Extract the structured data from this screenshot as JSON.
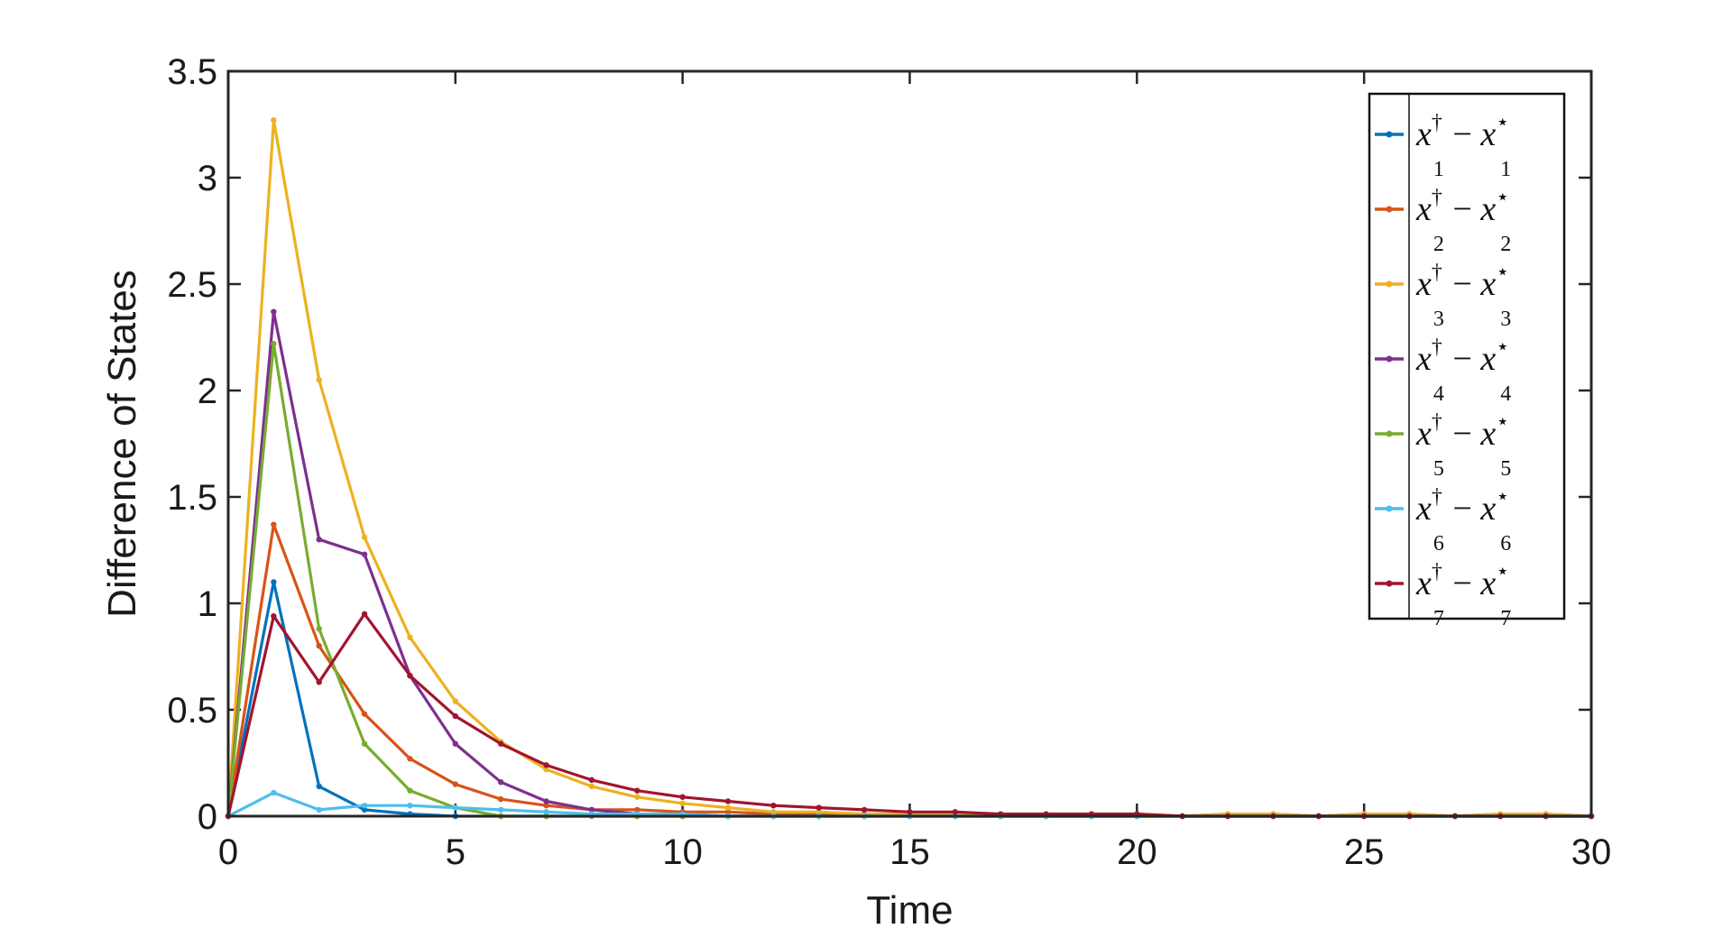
{
  "chart_data": {
    "type": "line",
    "xlabel": "Time",
    "ylabel": "Difference of States",
    "xlim": [
      0,
      30
    ],
    "ylim": [
      0,
      3.5
    ],
    "xticks": [
      0,
      5,
      10,
      15,
      20,
      25,
      30
    ],
    "yticks": [
      0,
      0.5,
      1,
      1.5,
      2,
      2.5,
      3,
      3.5
    ],
    "xtick_labels": [
      "0",
      "5",
      "10",
      "15",
      "20",
      "25",
      "30"
    ],
    "ytick_labels": [
      "0",
      "0.5",
      "1",
      "1.5",
      "2",
      "2.5",
      "3",
      "3.5"
    ],
    "grid": false,
    "legend_position": "top-right",
    "x": [
      0,
      1,
      2,
      3,
      4,
      5,
      6,
      7,
      8,
      9,
      10,
      11,
      12,
      13,
      14,
      15,
      16,
      17,
      18,
      19,
      20,
      21,
      22,
      23,
      24,
      25,
      26,
      27,
      28,
      29,
      30
    ],
    "series": [
      {
        "name": "x1† − x1⋆",
        "sub": "1",
        "color": "#0072BD",
        "values": [
          0,
          1.1,
          0.14,
          0.03,
          0.01,
          0,
          0,
          0,
          0,
          0,
          0,
          0,
          0,
          0,
          0,
          0,
          0,
          0,
          0,
          0,
          0,
          0,
          0,
          0,
          0,
          0,
          0,
          0,
          0,
          0,
          0
        ]
      },
      {
        "name": "x2† − x2⋆",
        "sub": "2",
        "color": "#D95319",
        "values": [
          0,
          1.37,
          0.8,
          0.48,
          0.27,
          0.15,
          0.08,
          0.05,
          0.03,
          0.03,
          0.02,
          0.02,
          0.01,
          0.01,
          0.01,
          0.01,
          0.01,
          0.01,
          0,
          0.01,
          0.01,
          0,
          0.01,
          0.01,
          0,
          0.01,
          0.01,
          0,
          0.01,
          0.01,
          0
        ]
      },
      {
        "name": "x3† − x3⋆",
        "sub": "3",
        "color": "#EDB120",
        "values": [
          0,
          3.27,
          2.05,
          1.31,
          0.84,
          0.54,
          0.35,
          0.22,
          0.14,
          0.09,
          0.06,
          0.04,
          0.02,
          0.02,
          0.01,
          0.01,
          0.01,
          0.01,
          0,
          0.01,
          0.01,
          0,
          0.01,
          0.01,
          0,
          0.01,
          0.01,
          0,
          0.01,
          0.01,
          0
        ]
      },
      {
        "name": "x4† − x4⋆",
        "sub": "4",
        "color": "#7E2F8E",
        "values": [
          0,
          2.37,
          1.3,
          1.23,
          0.66,
          0.34,
          0.16,
          0.07,
          0.03,
          0.01,
          0.01,
          0,
          0,
          0,
          0,
          0,
          0,
          0,
          0,
          0,
          0,
          0,
          0,
          0,
          0,
          0,
          0,
          0,
          0,
          0,
          0
        ]
      },
      {
        "name": "x5† − x5⋆",
        "sub": "5",
        "color": "#77AC30",
        "values": [
          0,
          2.22,
          0.88,
          0.34,
          0.12,
          0.04,
          0,
          0,
          0,
          0,
          0,
          0,
          0,
          0,
          0,
          0,
          0,
          0,
          0,
          0,
          0,
          0,
          0,
          0,
          0,
          0,
          0,
          0,
          0,
          0,
          0
        ]
      },
      {
        "name": "x6† − x6⋆",
        "sub": "6",
        "color": "#4DBEEE",
        "values": [
          0,
          0.11,
          0.03,
          0.05,
          0.05,
          0.04,
          0.03,
          0.02,
          0.01,
          0.01,
          0.01,
          0,
          0,
          0,
          0,
          0,
          0,
          0,
          0,
          0,
          0,
          0,
          0,
          0,
          0,
          0,
          0,
          0,
          0,
          0,
          0
        ]
      },
      {
        "name": "x7† − x7⋆",
        "sub": "7",
        "color": "#A2142F",
        "values": [
          0,
          0.94,
          0.63,
          0.95,
          0.66,
          0.47,
          0.34,
          0.24,
          0.17,
          0.12,
          0.09,
          0.07,
          0.05,
          0.04,
          0.03,
          0.02,
          0.02,
          0.01,
          0.01,
          0.01,
          0.01,
          0,
          0,
          0,
          0,
          0,
          0,
          0,
          0,
          0,
          0
        ]
      }
    ]
  }
}
